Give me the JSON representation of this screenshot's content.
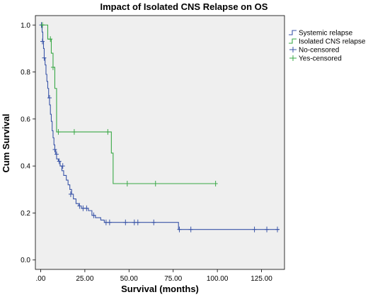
{
  "chart_data": {
    "type": "line",
    "title": "Impact of Isolated CNS Relapse on OS",
    "xlabel": "Survival (months)",
    "ylabel": "Cum Survival",
    "xlim": [
      -3,
      138
    ],
    "ylim": [
      -0.04,
      1.04
    ],
    "x_ticks": [
      0,
      25,
      50,
      75,
      100,
      125
    ],
    "x_tick_labels": [
      ".00",
      "25.00",
      "50.00",
      "75.00",
      "100.00",
      "125.00"
    ],
    "y_ticks": [
      0.0,
      0.2,
      0.4,
      0.6,
      0.8,
      1.0
    ],
    "y_tick_labels": [
      "0.0",
      "0.2",
      "0.4",
      "0.6",
      "0.8",
      "1.0"
    ],
    "grid": false,
    "legend_position": "right",
    "legend": [
      {
        "label": "Systemic relapse",
        "color": "#3a55a8",
        "marker": "step"
      },
      {
        "label": "Isolated CNS relapse",
        "color": "#39a846",
        "marker": "step"
      },
      {
        "label": "No-censored",
        "color": "#3a55a8",
        "marker": "plus"
      },
      {
        "label": "Yes-censored",
        "color": "#39a846",
        "marker": "plus"
      }
    ],
    "series": [
      {
        "name": "Systemic relapse",
        "color": "#3a55a8",
        "steps": [
          [
            0,
            1.0
          ],
          [
            0.8,
            0.97
          ],
          [
            1.2,
            0.93
          ],
          [
            1.6,
            0.9
          ],
          [
            2.0,
            0.86
          ],
          [
            2.5,
            0.83
          ],
          [
            3.0,
            0.79
          ],
          [
            3.5,
            0.76
          ],
          [
            4.0,
            0.73
          ],
          [
            4.5,
            0.69
          ],
          [
            5.0,
            0.66
          ],
          [
            5.5,
            0.62
          ],
          [
            6.0,
            0.59
          ],
          [
            6.5,
            0.55
          ],
          [
            7.0,
            0.52
          ],
          [
            7.5,
            0.49
          ],
          [
            8.0,
            0.47
          ],
          [
            8.5,
            0.45
          ],
          [
            9.0,
            0.43
          ],
          [
            10.0,
            0.42
          ],
          [
            11.0,
            0.4
          ],
          [
            12.0,
            0.38
          ],
          [
            13.0,
            0.36
          ],
          [
            14.5,
            0.34
          ],
          [
            15.5,
            0.32
          ],
          [
            16.5,
            0.3
          ],
          [
            17.5,
            0.28
          ],
          [
            18.5,
            0.26
          ],
          [
            20.0,
            0.24
          ],
          [
            21.5,
            0.23
          ],
          [
            23.0,
            0.22
          ],
          [
            27.0,
            0.21
          ],
          [
            29.0,
            0.19
          ],
          [
            31.0,
            0.18
          ],
          [
            34.0,
            0.17
          ],
          [
            36.0,
            0.16
          ],
          [
            78.0,
            0.13
          ],
          [
            135.0,
            0.13
          ]
        ],
        "censored": [
          [
            0.4,
            1.0
          ],
          [
            1.0,
            0.93
          ],
          [
            2.0,
            0.86
          ],
          [
            5.0,
            0.69
          ],
          [
            8.0,
            0.47
          ],
          [
            9.0,
            0.45
          ],
          [
            10.5,
            0.42
          ],
          [
            12.5,
            0.4
          ],
          [
            17.0,
            0.28
          ],
          [
            22.0,
            0.23
          ],
          [
            24.0,
            0.22
          ],
          [
            26.0,
            0.22
          ],
          [
            30.0,
            0.19
          ],
          [
            37.0,
            0.16
          ],
          [
            39.0,
            0.16
          ],
          [
            48.0,
            0.16
          ],
          [
            53.0,
            0.16
          ],
          [
            55.0,
            0.16
          ],
          [
            64.0,
            0.16
          ],
          [
            78.5,
            0.13
          ],
          [
            85.0,
            0.13
          ],
          [
            121.0,
            0.13
          ],
          [
            128.0,
            0.13
          ],
          [
            134.0,
            0.13
          ]
        ]
      },
      {
        "name": "Isolated CNS relapse",
        "color": "#39a846",
        "steps": [
          [
            0,
            1.0
          ],
          [
            4.0,
            0.94
          ],
          [
            6.0,
            0.88
          ],
          [
            7.0,
            0.82
          ],
          [
            8.0,
            0.73
          ],
          [
            9.0,
            0.545
          ],
          [
            40.0,
            0.455
          ],
          [
            41.0,
            0.325
          ],
          [
            99.0,
            0.325
          ]
        ],
        "censored": [
          [
            1.0,
            1.0
          ],
          [
            5.5,
            0.94
          ],
          [
            7.0,
            0.82
          ],
          [
            10.0,
            0.545
          ],
          [
            19.0,
            0.545
          ],
          [
            38.0,
            0.545
          ],
          [
            49.0,
            0.325
          ],
          [
            65.0,
            0.325
          ],
          [
            99.0,
            0.325
          ]
        ]
      }
    ]
  }
}
